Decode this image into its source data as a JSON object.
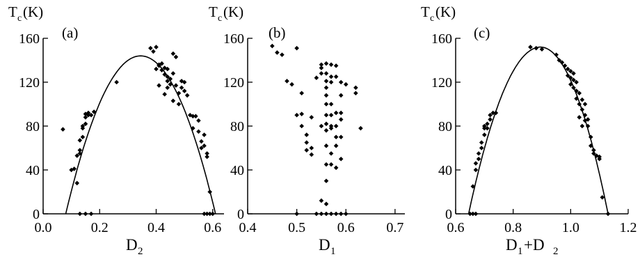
{
  "chart_data": [
    {
      "panel": "(a)",
      "type": "scatter",
      "ylabel_main": "T",
      "ylabel_sub": "c",
      "ylabel_unit": "(K)",
      "xlabel_main": "D",
      "xlabel_sub": "2",
      "xlim": [
        0.0,
        0.64
      ],
      "ylim": [
        0,
        160
      ],
      "xticks": [
        "0.0",
        "0.2",
        "0.4",
        "0.6"
      ],
      "yticks": [
        "0",
        "40",
        "80",
        "120",
        "160"
      ],
      "xtick_values": [
        0.0,
        0.2,
        0.4,
        0.6
      ],
      "ytick_values": [
        0,
        40,
        80,
        120,
        160
      ],
      "fit_curve": {
        "type": "parabola",
        "x": [
          0.08,
          0.345,
          0.61
        ],
        "y": [
          0,
          144,
          0
        ]
      },
      "points": [
        [
          0.07,
          77
        ],
        [
          0.1,
          40
        ],
        [
          0.11,
          41
        ],
        [
          0.12,
          28
        ],
        [
          0.12,
          53
        ],
        [
          0.13,
          55
        ],
        [
          0.13,
          58
        ],
        [
          0.13,
          67
        ],
        [
          0.14,
          70
        ],
        [
          0.14,
          78
        ],
        [
          0.14,
          80
        ],
        [
          0.15,
          82
        ],
        [
          0.15,
          88
        ],
        [
          0.15,
          91
        ],
        [
          0.16,
          92
        ],
        [
          0.16,
          90
        ],
        [
          0.17,
          90
        ],
        [
          0.18,
          93
        ],
        [
          0.13,
          0
        ],
        [
          0.15,
          0
        ],
        [
          0.17,
          0
        ],
        [
          0.26,
          120
        ],
        [
          0.38,
          151
        ],
        [
          0.39,
          148
        ],
        [
          0.4,
          152
        ],
        [
          0.4,
          132
        ],
        [
          0.41,
          135
        ],
        [
          0.41,
          136
        ],
        [
          0.42,
          137
        ],
        [
          0.42,
          131
        ],
        [
          0.43,
          133
        ],
        [
          0.43,
          127
        ],
        [
          0.44,
          125
        ],
        [
          0.44,
          132
        ],
        [
          0.44,
          121
        ],
        [
          0.45,
          123
        ],
        [
          0.45,
          118
        ],
        [
          0.46,
          146
        ],
        [
          0.46,
          128
        ],
        [
          0.47,
          143
        ],
        [
          0.47,
          117
        ],
        [
          0.48,
          110
        ],
        [
          0.48,
          100
        ],
        [
          0.49,
          115
        ],
        [
          0.49,
          121
        ],
        [
          0.5,
          120
        ],
        [
          0.5,
          112
        ],
        [
          0.51,
          108
        ],
        [
          0.52,
          90
        ],
        [
          0.53,
          89
        ],
        [
          0.53,
          78
        ],
        [
          0.54,
          89
        ],
        [
          0.55,
          75
        ],
        [
          0.56,
          66
        ],
        [
          0.56,
          60
        ],
        [
          0.57,
          72
        ],
        [
          0.58,
          55
        ],
        [
          0.58,
          52
        ],
        [
          0.59,
          20
        ],
        [
          0.41,
          117
        ],
        [
          0.43,
          109
        ],
        [
          0.46,
          103
        ],
        [
          0.44,
          115
        ],
        [
          0.55,
          85
        ],
        [
          0.57,
          62
        ],
        [
          0.59,
          0
        ],
        [
          0.6,
          0
        ],
        [
          0.58,
          0
        ],
        [
          0.57,
          0
        ]
      ]
    },
    {
      "panel": "(b)",
      "type": "scatter",
      "ylabel_main": "T",
      "ylabel_sub": "c",
      "ylabel_unit": "(K)",
      "xlabel_main": "D",
      "xlabel_sub": "1",
      "xlim": [
        0.4,
        0.72
      ],
      "ylim": [
        0,
        160
      ],
      "xticks": [
        "0.4",
        "0.5",
        "0.6",
        "0.7"
      ],
      "yticks": [
        "0",
        "40",
        "80",
        "120",
        "160"
      ],
      "xtick_values": [
        0.4,
        0.5,
        0.6,
        0.7
      ],
      "ytick_values": [
        0,
        40,
        80,
        120,
        160
      ],
      "points": [
        [
          0.45,
          153
        ],
        [
          0.46,
          147
        ],
        [
          0.47,
          145
        ],
        [
          0.5,
          151
        ],
        [
          0.48,
          121
        ],
        [
          0.49,
          118
        ],
        [
          0.5,
          90
        ],
        [
          0.51,
          91
        ],
        [
          0.51,
          110
        ],
        [
          0.51,
          80
        ],
        [
          0.52,
          72
        ],
        [
          0.52,
          58
        ],
        [
          0.53,
          60
        ],
        [
          0.53,
          88
        ],
        [
          0.53,
          54
        ],
        [
          0.52,
          65
        ],
        [
          0.54,
          124
        ],
        [
          0.55,
          136
        ],
        [
          0.55,
          128
        ],
        [
          0.55,
          133
        ],
        [
          0.56,
          137
        ],
        [
          0.56,
          128
        ],
        [
          0.56,
          121
        ],
        [
          0.56,
          115
        ],
        [
          0.56,
          108
        ],
        [
          0.56,
          90
        ],
        [
          0.56,
          82
        ],
        [
          0.56,
          76
        ],
        [
          0.56,
          62
        ],
        [
          0.56,
          45
        ],
        [
          0.56,
          30
        ],
        [
          0.57,
          136
        ],
        [
          0.57,
          125
        ],
        [
          0.57,
          120
        ],
        [
          0.57,
          100
        ],
        [
          0.57,
          90
        ],
        [
          0.57,
          80
        ],
        [
          0.57,
          78
        ],
        [
          0.57,
          55
        ],
        [
          0.58,
          92
        ],
        [
          0.58,
          80
        ],
        [
          0.58,
          70
        ],
        [
          0.58,
          62
        ],
        [
          0.58,
          42
        ],
        [
          0.58,
          135
        ],
        [
          0.58,
          125
        ],
        [
          0.59,
          120
        ],
        [
          0.59,
          108
        ],
        [
          0.59,
          92
        ],
        [
          0.59,
          86
        ],
        [
          0.59,
          70
        ],
        [
          0.59,
          50
        ],
        [
          0.6,
          118
        ],
        [
          0.62,
          115
        ],
        [
          0.62,
          110
        ],
        [
          0.63,
          78
        ],
        [
          0.55,
          12
        ],
        [
          0.56,
          9
        ],
        [
          0.5,
          0
        ],
        [
          0.54,
          0
        ],
        [
          0.55,
          0
        ],
        [
          0.56,
          0
        ],
        [
          0.57,
          0
        ],
        [
          0.58,
          0
        ],
        [
          0.59,
          0
        ],
        [
          0.6,
          0
        ],
        [
          0.55,
          80
        ],
        [
          0.57,
          45
        ],
        [
          0.56,
          100
        ]
      ]
    },
    {
      "panel": "(c)",
      "type": "scatter",
      "ylabel_main": "T",
      "ylabel_sub": "c",
      "ylabel_unit": "(K)",
      "xlabel_main": "D",
      "xlabel_sub": "1",
      "xlabel_tail": "+D",
      "xlabel_sub2": "2",
      "xlim": [
        0.6,
        1.2
      ],
      "ylim": [
        0,
        160
      ],
      "xticks": [
        "0.6",
        "0.8",
        "1.0",
        "1.2"
      ],
      "yticks": [
        "0",
        "40",
        "80",
        "120",
        "160"
      ],
      "xtick_values": [
        0.6,
        0.8,
        1.0,
        1.2
      ],
      "ytick_values": [
        0,
        40,
        80,
        120,
        160
      ],
      "fit_curve": {
        "type": "parabola",
        "x": [
          0.645,
          0.895,
          1.13
        ],
        "y": [
          0,
          152,
          0
        ]
      },
      "points": [
        [
          0.65,
          0
        ],
        [
          0.66,
          0
        ],
        [
          0.67,
          0
        ],
        [
          0.66,
          25
        ],
        [
          0.67,
          40
        ],
        [
          0.67,
          46
        ],
        [
          0.68,
          50
        ],
        [
          0.68,
          55
        ],
        [
          0.69,
          60
        ],
        [
          0.69,
          65
        ],
        [
          0.7,
          72
        ],
        [
          0.7,
          78
        ],
        [
          0.7,
          80
        ],
        [
          0.71,
          82
        ],
        [
          0.71,
          78
        ],
        [
          0.72,
          86
        ],
        [
          0.72,
          90
        ],
        [
          0.73,
          92
        ],
        [
          0.74,
          92
        ],
        [
          0.86,
          152
        ],
        [
          0.88,
          151
        ],
        [
          0.9,
          150
        ],
        [
          0.95,
          145
        ],
        [
          0.96,
          140
        ],
        [
          0.97,
          138
        ],
        [
          0.98,
          135
        ],
        [
          0.99,
          132
        ],
        [
          0.99,
          126
        ],
        [
          1.0,
          130
        ],
        [
          1.0,
          124
        ],
        [
          1.0,
          118
        ],
        [
          1.01,
          128
        ],
        [
          1.01,
          122
        ],
        [
          1.01,
          115
        ],
        [
          1.02,
          120
        ],
        [
          1.02,
          112
        ],
        [
          1.02,
          105
        ],
        [
          1.03,
          110
        ],
        [
          1.03,
          100
        ],
        [
          1.04,
          104
        ],
        [
          1.04,
          95
        ],
        [
          1.05,
          90
        ],
        [
          1.05,
          85
        ],
        [
          1.06,
          86
        ],
        [
          1.06,
          80
        ],
        [
          1.07,
          70
        ],
        [
          1.07,
          62
        ],
        [
          1.08,
          58
        ],
        [
          1.08,
          55
        ],
        [
          1.09,
          53
        ],
        [
          1.1,
          52
        ],
        [
          1.1,
          50
        ],
        [
          1.11,
          15
        ],
        [
          1.13,
          0
        ],
        [
          1.03,
          88
        ],
        [
          1.04,
          80
        ],
        [
          1.05,
          100
        ]
      ]
    }
  ]
}
